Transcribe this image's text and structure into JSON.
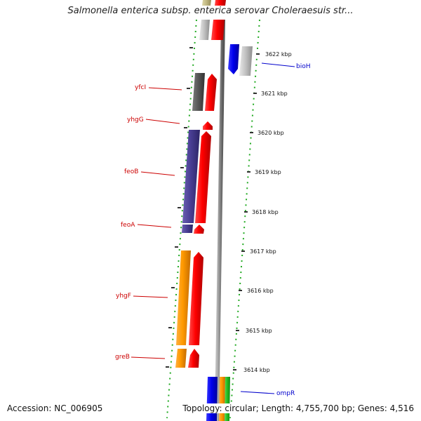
{
  "title": "Salmonella enterica subsp. enterica serovar Choleraesuis str...",
  "footer": {
    "accession": "Accession: NC_006905",
    "stats": "Topology: circular; Length: 4,755,700 bp; Genes: 4,516"
  },
  "scale": {
    "ticks": [
      "3622 kbp",
      "3621 kbp",
      "3620 kbp",
      "3619 kbp",
      "3618 kbp",
      "3617 kbp",
      "3616 kbp",
      "3615 kbp",
      "3614 kbp"
    ]
  },
  "genes": {
    "left_labels": [
      "yfcI",
      "yhgG",
      "feoB",
      "feoA",
      "yhgF",
      "greB"
    ],
    "right_labels": [
      "bioH",
      "ompR"
    ]
  },
  "colors": {
    "reverse_label": "#cc0000",
    "forward_label": "#0000cc",
    "axis": "#808080",
    "guide": "#22aa22"
  }
}
